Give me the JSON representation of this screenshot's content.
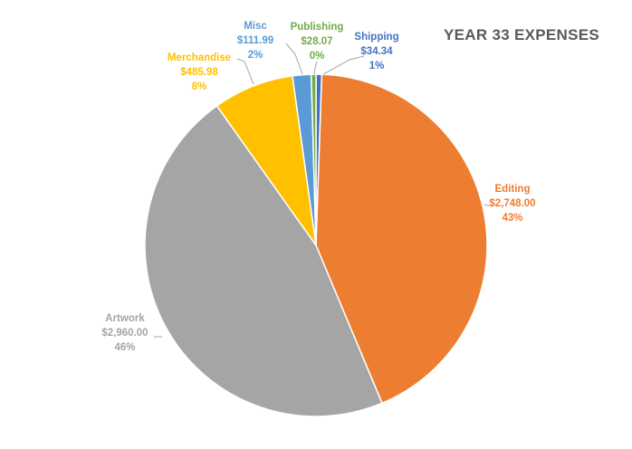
{
  "chart_data": {
    "type": "pie",
    "title": "YEAR 33 EXPENSES",
    "slices": [
      {
        "label": "Shipping",
        "value": 34.34,
        "value_label": "$34.34",
        "percent_label": "1%",
        "color": "#4472C4"
      },
      {
        "label": "Editing",
        "value": 2748.0,
        "value_label": "$2,748.00",
        "percent_label": "43%",
        "color": "#ED7D31"
      },
      {
        "label": "Artwork",
        "value": 2960.0,
        "value_label": "$2,960.00",
        "percent_label": "46%",
        "color": "#A5A5A5"
      },
      {
        "label": "Merchandise",
        "value": 485.98,
        "value_label": "$485.98",
        "percent_label": "8%",
        "color": "#FFC000"
      },
      {
        "label": "Misc",
        "value": 111.99,
        "value_label": "$111.99",
        "percent_label": "2%",
        "color": "#5B9BD5"
      },
      {
        "label": "Publishing",
        "value": 28.07,
        "value_label": "$28.07",
        "percent_label": "0%",
        "color": "#70AD47"
      }
    ],
    "legend": "none",
    "data_labels": "outside with leader lines"
  }
}
